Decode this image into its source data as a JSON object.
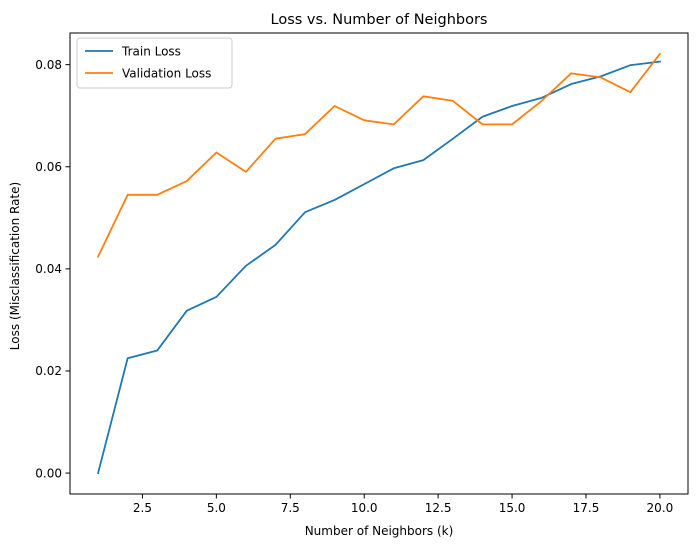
{
  "chart_data": {
    "type": "line",
    "title": "Loss vs. Number of Neighbors",
    "xlabel": "Number of Neighbors (k)",
    "ylabel": "Loss (Misclassification Rate)",
    "xlim": [
      0.05,
      20.95
    ],
    "ylim": [
      -0.0041,
      0.0862
    ],
    "xticks": [
      2.5,
      5.0,
      7.5,
      10.0,
      12.5,
      15.0,
      17.5,
      20.0
    ],
    "xtick_labels": [
      "2.5",
      "5.0",
      "7.5",
      "10.0",
      "12.5",
      "15.0",
      "17.5",
      "20.0"
    ],
    "yticks": [
      0.0,
      0.02,
      0.04,
      0.06,
      0.08
    ],
    "ytick_labels": [
      "0.00",
      "0.02",
      "0.04",
      "0.06",
      "0.08"
    ],
    "grid": false,
    "legend_position": "top-left",
    "x": [
      1,
      2,
      3,
      4,
      5,
      6,
      7,
      8,
      9,
      10,
      11,
      12,
      13,
      14,
      15,
      16,
      17,
      18,
      19,
      20
    ],
    "series": [
      {
        "name": "Train Loss",
        "color": "#1f77b4",
        "values": [
          0.0,
          0.0225,
          0.024,
          0.0318,
          0.0345,
          0.0406,
          0.0447,
          0.0511,
          0.0535,
          0.0566,
          0.0597,
          0.0613,
          0.0655,
          0.0698,
          0.0719,
          0.0735,
          0.0762,
          0.0777,
          0.0799,
          0.0806
        ]
      },
      {
        "name": "Validation Loss",
        "color": "#ff7f0e",
        "values": [
          0.0424,
          0.0545,
          0.0545,
          0.0572,
          0.0628,
          0.059,
          0.0655,
          0.0664,
          0.0719,
          0.0691,
          0.0683,
          0.0738,
          0.0729,
          0.0683,
          0.0683,
          0.0729,
          0.0783,
          0.0775,
          0.0746,
          0.0821
        ]
      }
    ]
  }
}
